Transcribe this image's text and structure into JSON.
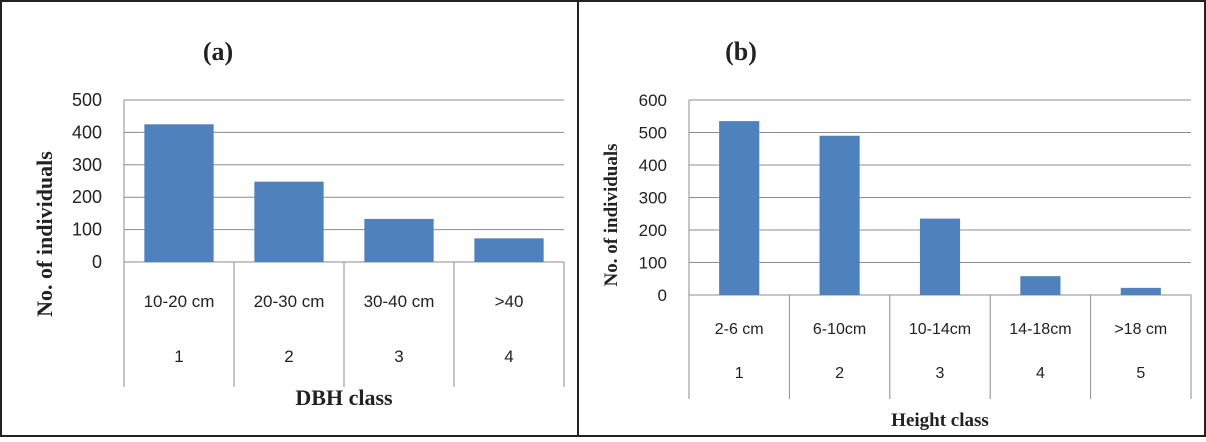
{
  "chart_data": [
    {
      "type": "bar",
      "panel_label": "(a)",
      "categories": [
        "10-20 cm",
        "20-30 cm",
        "30-40 cm",
        ">40"
      ],
      "category_numbers": [
        "1",
        "2",
        "3",
        "4"
      ],
      "values": [
        425,
        248,
        133,
        73
      ],
      "xlabel": "DBH class",
      "ylabel": "No. of individuals",
      "ylim": [
        0,
        500
      ],
      "yticks": [
        0,
        100,
        200,
        300,
        400,
        500
      ],
      "grid": true,
      "legend": "none",
      "bar_color": "#4f81bd"
    },
    {
      "type": "bar",
      "panel_label": "(b)",
      "categories": [
        "2-6 cm",
        "6-10cm",
        "10-14cm",
        "14-18cm",
        ">18 cm"
      ],
      "category_numbers": [
        "1",
        "2",
        "3",
        "4",
        "5"
      ],
      "values": [
        535,
        490,
        235,
        58,
        22
      ],
      "xlabel": "Height class",
      "ylabel": "No. of  individuals",
      "ylim": [
        0,
        600
      ],
      "yticks": [
        0,
        100,
        200,
        300,
        400,
        500,
        600
      ],
      "grid": true,
      "legend": "none",
      "bar_color": "#4f81bd"
    }
  ]
}
